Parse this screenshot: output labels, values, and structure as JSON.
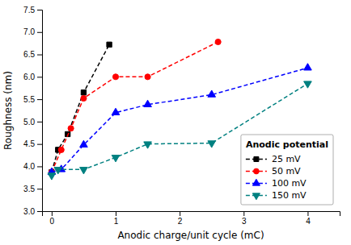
{
  "chart_data": {
    "type": "line",
    "xlabel": "Anodic charge/unit cycle (mC)",
    "ylabel": "Roughness (nm)",
    "xlim": [
      -0.15,
      4.5
    ],
    "ylim": [
      3.0,
      7.5
    ],
    "xticks": [
      0,
      1,
      2,
      3,
      4
    ],
    "yticks": [
      {
        "value": 3.0,
        "label": "3.0"
      },
      {
        "value": 3.5,
        "label": "3.5"
      },
      {
        "value": 4.0,
        "label": "4.0"
      },
      {
        "value": 4.5,
        "label": "4.5"
      },
      {
        "value": 5.0,
        "label": "5.0"
      },
      {
        "value": 5.5,
        "label": "5.5"
      },
      {
        "value": 6.0,
        "label": "6.0"
      },
      {
        "value": 6.5,
        "label": "6.5"
      },
      {
        "value": 7.0,
        "label": "7.0"
      },
      {
        "value": 7.5,
        "label": "7.5"
      }
    ],
    "grid": false,
    "legend": "lower right",
    "legend_title": "Anodic potential",
    "series": [
      {
        "name": "25 mV",
        "color": "black",
        "marker": "square",
        "line_style": "dashed",
        "x": [
          0.0,
          0.1,
          0.25,
          0.5,
          0.9
        ],
        "values": [
          3.87,
          4.37,
          4.72,
          5.65,
          6.72
        ]
      },
      {
        "name": "50 mV",
        "color": "red",
        "marker": "circle",
        "line_style": "dashed",
        "x": [
          0.0,
          0.15,
          0.3,
          0.5,
          1.0,
          1.5,
          2.6
        ],
        "values": [
          3.87,
          4.37,
          4.85,
          5.52,
          6.0,
          6.0,
          6.78
        ]
      },
      {
        "name": "100 mV",
        "color": "blue",
        "marker": "triangle-up",
        "line_style": "dashed",
        "x": [
          0.0,
          0.15,
          0.5,
          1.0,
          1.5,
          2.5,
          4.0
        ],
        "values": [
          3.87,
          3.93,
          4.48,
          5.2,
          5.38,
          5.6,
          6.2
        ]
      },
      {
        "name": "150 mV",
        "color": "#008080",
        "marker": "triangle-down",
        "line_style": "dashed",
        "x": [
          0.0,
          0.1,
          0.5,
          1.0,
          1.5,
          2.5,
          4.0
        ],
        "values": [
          3.8,
          3.93,
          3.93,
          4.2,
          4.5,
          4.52,
          5.85
        ]
      }
    ]
  }
}
